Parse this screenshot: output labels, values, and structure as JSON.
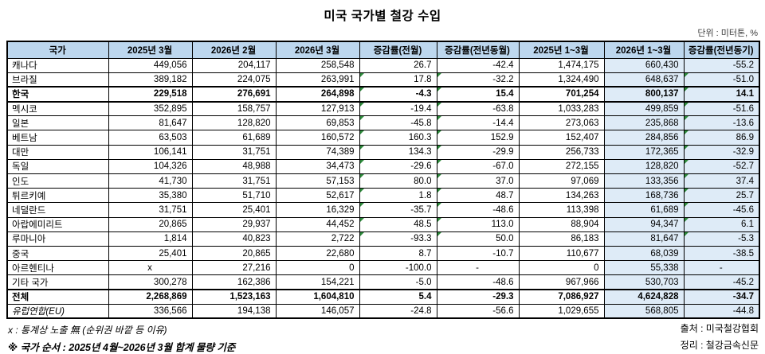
{
  "title": "미국 국가별 철강 수입",
  "unit_note": "단위 : 미터톤, %",
  "colors": {
    "header_bg": "#BDD7EE",
    "highlight_column_bg": "#DEEBF7",
    "flag_triangle_green": "#2E8B3C",
    "border": "#000000"
  },
  "footnotes": {
    "note1": "x : 통계상 노출 無 (순위권 바깥 등 이유)",
    "note2": "※ 국가 순서 : 2025년 4월~2026년 3월 합계 물량 기준",
    "source": "출처 : 미국철강협회",
    "credit": "정리 : 철강금속신문"
  },
  "chart_data": {
    "type": "table",
    "title": "미국 국가별 철강 수입",
    "unit": "미터톤, %",
    "columns": [
      "국가",
      "2025년 3월",
      "2026년 2월",
      "2026년 3월",
      "증감률(전월)",
      "증감률(전년동월)",
      "2025년 1~3월",
      "2026년 1~3월",
      "증감률(전년동기)"
    ],
    "highlighted_columns": [
      "2026년 1~3월",
      "증감률(전년동기)"
    ],
    "rows": [
      {
        "label": "캐나다",
        "cells": [
          "449,056",
          "204,117",
          "258,548",
          "26.7",
          "-42.4",
          "1,474,175",
          "660,430",
          "-55.2"
        ],
        "bold": false,
        "boxed": false,
        "thick_top": false,
        "italic_label": false,
        "flagged": false
      },
      {
        "label": "브라질",
        "cells": [
          "389,182",
          "224,075",
          "263,991",
          "17.8",
          "-32.2",
          "1,324,490",
          "648,637",
          "-51.0"
        ],
        "bold": false,
        "boxed": false,
        "thick_top": false,
        "italic_label": false,
        "flagged": true
      },
      {
        "label": "한국",
        "cells": [
          "229,518",
          "276,691",
          "264,898",
          "-4.3",
          "15.4",
          "701,254",
          "800,137",
          "14.1"
        ],
        "bold": true,
        "boxed": true,
        "thick_top": false,
        "italic_label": false,
        "flagged": true
      },
      {
        "label": "멕시코",
        "cells": [
          "352,895",
          "158,757",
          "127,913",
          "-19.4",
          "-63.8",
          "1,033,283",
          "499,859",
          "-51.6"
        ],
        "bold": false,
        "boxed": false,
        "thick_top": false,
        "italic_label": false,
        "flagged": true
      },
      {
        "label": "일본",
        "cells": [
          "81,647",
          "128,820",
          "69,853",
          "-45.8",
          "-14.4",
          "273,063",
          "235,868",
          "-13.6"
        ],
        "bold": false,
        "boxed": false,
        "thick_top": false,
        "italic_label": false,
        "flagged": true
      },
      {
        "label": "베트남",
        "cells": [
          "63,503",
          "61,689",
          "160,572",
          "160.3",
          "152.9",
          "152,407",
          "284,856",
          "86.9"
        ],
        "bold": false,
        "boxed": false,
        "thick_top": false,
        "italic_label": false,
        "flagged": true
      },
      {
        "label": "대만",
        "cells": [
          "106,141",
          "31,751",
          "74,389",
          "134.3",
          "-29.9",
          "256,733",
          "172,365",
          "-32.9"
        ],
        "bold": false,
        "boxed": false,
        "thick_top": false,
        "italic_label": false,
        "flagged": true
      },
      {
        "label": "독일",
        "cells": [
          "104,326",
          "48,988",
          "34,473",
          "-29.6",
          "-67.0",
          "272,155",
          "128,820",
          "-52.7"
        ],
        "bold": false,
        "boxed": false,
        "thick_top": false,
        "italic_label": false,
        "flagged": true
      },
      {
        "label": "인도",
        "cells": [
          "41,730",
          "31,751",
          "57,153",
          "80.0",
          "37.0",
          "97,069",
          "133,356",
          "37.4"
        ],
        "bold": false,
        "boxed": false,
        "thick_top": false,
        "italic_label": false,
        "flagged": true
      },
      {
        "label": "튀르키예",
        "cells": [
          "35,380",
          "51,710",
          "52,617",
          "1.8",
          "48.7",
          "134,263",
          "168,736",
          "25.7"
        ],
        "bold": false,
        "boxed": false,
        "thick_top": false,
        "italic_label": false,
        "flagged": true
      },
      {
        "label": "네덜란드",
        "cells": [
          "31,751",
          "25,401",
          "16,329",
          "-35.7",
          "-48.6",
          "113,398",
          "61,689",
          "-45.6"
        ],
        "bold": false,
        "boxed": false,
        "thick_top": false,
        "italic_label": false,
        "flagged": true
      },
      {
        "label": "아랍에미리트",
        "cells": [
          "20,865",
          "29,937",
          "44,452",
          "48.5",
          "113.0",
          "88,904",
          "94,347",
          "6.1"
        ],
        "bold": false,
        "boxed": false,
        "thick_top": false,
        "italic_label": false,
        "flagged": true
      },
      {
        "label": "루마니아",
        "cells": [
          "1,814",
          "40,823",
          "2,722",
          "-93.3",
          "50.0",
          "86,183",
          "81,647",
          "-5.3"
        ],
        "bold": false,
        "boxed": false,
        "thick_top": false,
        "italic_label": false,
        "flagged": true
      },
      {
        "label": "중국",
        "cells": [
          "25,401",
          "20,865",
          "22,680",
          "8.7",
          "-10.7",
          "110,677",
          "68,039",
          "-38.5"
        ],
        "bold": false,
        "boxed": false,
        "thick_top": false,
        "italic_label": false,
        "flagged": false
      },
      {
        "label": "아르헨티나",
        "cells": [
          "x",
          "27,216",
          "0",
          "-100.0",
          "-",
          "0",
          "55,338",
          "-"
        ],
        "bold": false,
        "boxed": false,
        "thick_top": false,
        "italic_label": false,
        "flagged": false
      },
      {
        "label": "기타 국가",
        "cells": [
          "300,278",
          "162,386",
          "154,221",
          "-5.0",
          "-48.6",
          "967,966",
          "530,703",
          "-45.2"
        ],
        "bold": false,
        "boxed": false,
        "thick_top": false,
        "italic_label": false,
        "flagged": false
      },
      {
        "label": "전체",
        "cells": [
          "2,268,869",
          "1,523,163",
          "1,604,810",
          "5.4",
          "-29.3",
          "7,086,927",
          "4,624,828",
          "-34.7"
        ],
        "bold": true,
        "boxed": false,
        "thick_top": true,
        "italic_label": false,
        "flagged": false
      },
      {
        "label": "유럽연합(EU)",
        "cells": [
          "336,566",
          "194,138",
          "146,057",
          "-24.8",
          "-56.6",
          "1,029,655",
          "568,805",
          "-44.8"
        ],
        "bold": false,
        "boxed": false,
        "thick_top": false,
        "italic_label": true,
        "flagged": false
      }
    ]
  }
}
